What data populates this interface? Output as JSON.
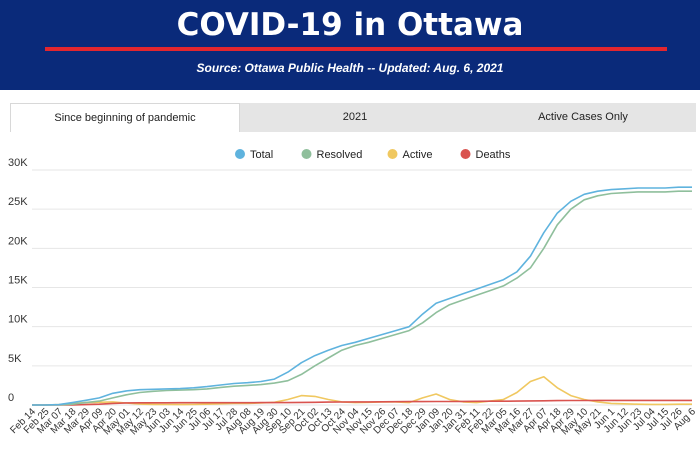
{
  "header": {
    "title": "COVID-19 in Ottawa",
    "subtitle": "Source:  Ottawa Public Health -- Updated:  Aug. 6, 2021"
  },
  "tabs": [
    {
      "label": "Since beginning of pandemic",
      "active": true
    },
    {
      "label": "2021",
      "active": false
    },
    {
      "label": "Active Cases Only",
      "active": false
    }
  ],
  "colors": {
    "header_bg": "#0a2a7a",
    "accent_line": "#e3262e",
    "total": "#5fb3de",
    "resolved": "#8fbf9c",
    "active": "#f0c860",
    "deaths": "#d9534f"
  },
  "chart_data": {
    "type": "line",
    "legend_position": "top",
    "grid": true,
    "ylim": [
      0,
      30000
    ],
    "y_ticks": [
      0,
      5000,
      10000,
      15000,
      20000,
      25000,
      30000
    ],
    "y_tick_labels": [
      "0",
      "5K",
      "10K",
      "15K",
      "20K",
      "25K",
      "30K"
    ],
    "x_tick_labels": [
      "Feb 14",
      "Feb 25",
      "Mar 07",
      "Mar 18",
      "Mar 29",
      "Apr 09",
      "Apr 20",
      "May 01",
      "May 12",
      "May 23",
      "Jun 03",
      "Jun 14",
      "Jun 25",
      "Jul 06",
      "Jul 17",
      "Jul 28",
      "Aug 08",
      "Aug 19",
      "Aug 30",
      "Sep 10",
      "Sep 21",
      "Oct 02",
      "Oct 13",
      "Oct 24",
      "Nov 04",
      "Nov 15",
      "Nov 26",
      "Dec 07",
      "Dec 18",
      "Dec 29",
      "Jan 09",
      "Jan 20",
      "Jan 31",
      "Feb 11",
      "Feb 22",
      "Mar 05",
      "Mar 16",
      "Mar 27",
      "Apr 07",
      "Apr 18",
      "Apr 29",
      "May 10",
      "May 21",
      "Jun 1",
      "Jun 12",
      "Jun 23",
      "Jul 04",
      "Jul 15",
      "Jul 26",
      "Aug 6"
    ],
    "series": [
      {
        "name": "Total",
        "color": "#5fb3de",
        "values": [
          0,
          0,
          50,
          300,
          600,
          900,
          1500,
          1800,
          1950,
          2000,
          2050,
          2100,
          2200,
          2350,
          2550,
          2750,
          2850,
          3000,
          3300,
          4200,
          5400,
          6300,
          7000,
          7600,
          8000,
          8500,
          9000,
          9500,
          10000,
          11600,
          13000,
          13600,
          14200,
          14800,
          15400,
          16000,
          17000,
          19000,
          22000,
          24500,
          26000,
          26900,
          27300,
          27500,
          27600,
          27700,
          27700,
          27700,
          27800,
          27800
        ]
      },
      {
        "name": "Resolved",
        "color": "#8fbf9c",
        "values": [
          0,
          0,
          0,
          100,
          300,
          500,
          900,
          1300,
          1600,
          1750,
          1850,
          1900,
          1950,
          2050,
          2250,
          2400,
          2500,
          2600,
          2800,
          3100,
          3900,
          5000,
          6000,
          7000,
          7600,
          8000,
          8500,
          9000,
          9500,
          10500,
          11800,
          12800,
          13400,
          14000,
          14600,
          15200,
          16200,
          17500,
          20000,
          23000,
          25000,
          26200,
          26700,
          27000,
          27100,
          27200,
          27200,
          27200,
          27300,
          27300
        ]
      },
      {
        "name": "Active",
        "color": "#f0c860",
        "values": [
          0,
          0,
          50,
          200,
          300,
          350,
          400,
          250,
          120,
          80,
          60,
          50,
          60,
          100,
          150,
          200,
          200,
          250,
          350,
          700,
          1200,
          1100,
          700,
          400,
          300,
          350,
          400,
          400,
          300,
          900,
          1400,
          700,
          400,
          300,
          500,
          700,
          1600,
          3000,
          3600,
          2200,
          1200,
          700,
          400,
          200,
          150,
          100,
          80,
          80,
          100,
          100
        ]
      },
      {
        "name": "Deaths",
        "color": "#d9534f",
        "values": [
          0,
          0,
          0,
          10,
          50,
          100,
          200,
          270,
          280,
          285,
          287,
          290,
          292,
          293,
          294,
          296,
          298,
          300,
          302,
          310,
          330,
          350,
          370,
          380,
          390,
          400,
          410,
          420,
          430,
          440,
          450,
          450,
          460,
          470,
          480,
          490,
          500,
          520,
          540,
          560,
          570,
          580,
          585,
          588,
          590,
          590,
          590,
          590,
          590,
          590
        ]
      }
    ]
  }
}
